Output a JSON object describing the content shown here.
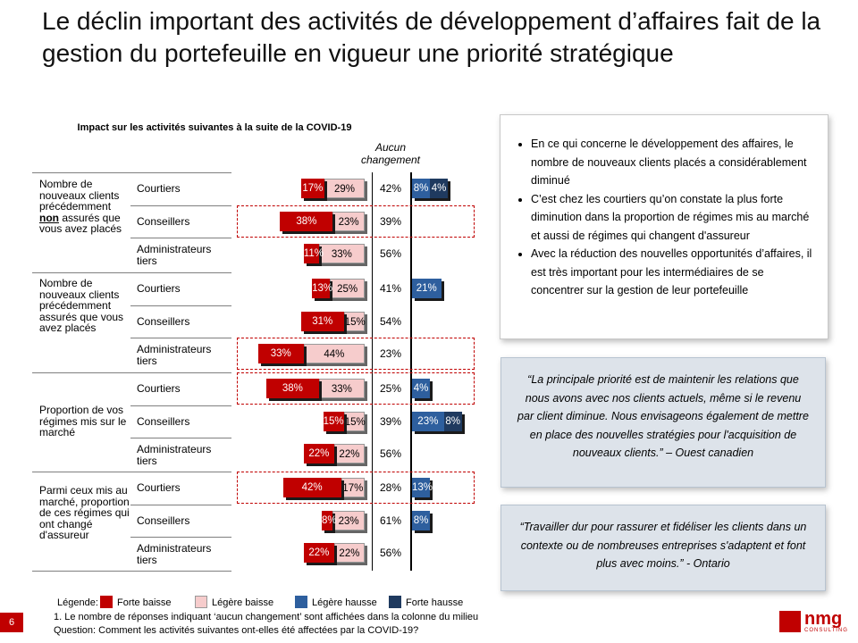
{
  "title": "Le déclin important des activités de développement  d’affaires fait de la gestion du portefeuille en vigueur une priorité stratégique",
  "chart_data": {
    "type": "bar",
    "title": "Impact sur les activités suivantes à la suite de la COVID-19",
    "center_column_label": "Aucun changement",
    "series": [
      {
        "name": "Forte baisse",
        "color": "#c00000"
      },
      {
        "name": "Légère baisse",
        "color": "#f6cccc"
      },
      {
        "name": "Aucun changement"
      },
      {
        "name": "Légère hausse",
        "color": "#2e5f9e"
      },
      {
        "name": "Forte hausse",
        "color": "#1f3a5f"
      }
    ],
    "categories": [
      "Nombre de nouveaux clients précédemment non assurés que vous avez placés",
      "Nombre de nouveaux clients précédemment assurés que vous avez placés",
      "Proportion de vos régimes mis sur le marché",
      "Parmi ceux mis au marché, proportion de ces régimes qui ont changé d'assureur"
    ],
    "groups": [
      "Courtiers",
      "Conseillers",
      "Administrateurs tiers"
    ],
    "rows": [
      {
        "category": 0,
        "group": "Courtiers",
        "forte_baisse": 17,
        "legere_baisse": 29,
        "aucun": 42,
        "legere_hausse": 8,
        "forte_hausse": 4,
        "highlight": false
      },
      {
        "category": 0,
        "group": "Conseillers",
        "forte_baisse": 38,
        "legere_baisse": 23,
        "aucun": 39,
        "legere_hausse": 0,
        "forte_hausse": 0,
        "highlight": true
      },
      {
        "category": 0,
        "group": "Administrateurs tiers",
        "forte_baisse": 11,
        "legere_baisse": 33,
        "aucun": 56,
        "legere_hausse": 0,
        "forte_hausse": 0,
        "highlight": false
      },
      {
        "category": 1,
        "group": "Courtiers",
        "forte_baisse": 13,
        "legere_baisse": 25,
        "aucun": 41,
        "legere_hausse": 21,
        "forte_hausse": 0,
        "highlight": false
      },
      {
        "category": 1,
        "group": "Conseillers",
        "forte_baisse": 31,
        "legere_baisse": 15,
        "aucun": 54,
        "legere_hausse": 0,
        "forte_hausse": 0,
        "highlight": false
      },
      {
        "category": 1,
        "group": "Administrateurs tiers",
        "forte_baisse": 33,
        "legere_baisse": 44,
        "aucun": 23,
        "legere_hausse": 0,
        "forte_hausse": 0,
        "highlight": true
      },
      {
        "category": 2,
        "group": "Courtiers",
        "forte_baisse": 38,
        "legere_baisse": 33,
        "aucun": 25,
        "legere_hausse": 4,
        "forte_hausse": 0,
        "highlight": true
      },
      {
        "category": 2,
        "group": "Conseillers",
        "forte_baisse": 15,
        "legere_baisse": 15,
        "aucun": 39,
        "legere_hausse": 23,
        "forte_hausse": 8,
        "highlight": false
      },
      {
        "category": 2,
        "group": "Administrateurs tiers",
        "forte_baisse": 22,
        "legere_baisse": 22,
        "aucun": 56,
        "legere_hausse": 0,
        "forte_hausse": 0,
        "highlight": false
      },
      {
        "category": 3,
        "group": "Courtiers",
        "forte_baisse": 42,
        "legere_baisse": 17,
        "aucun": 28,
        "legere_hausse": 13,
        "forte_hausse": 0,
        "highlight": true
      },
      {
        "category": 3,
        "group": "Conseillers",
        "forte_baisse": 8,
        "legere_baisse": 23,
        "aucun": 61,
        "legere_hausse": 8,
        "forte_hausse": 0,
        "highlight": false
      },
      {
        "category": 3,
        "group": "Administrateurs tiers",
        "forte_baisse": 22,
        "legere_baisse": 22,
        "aucun": 56,
        "legere_hausse": 0,
        "forte_hausse": 0,
        "highlight": false
      }
    ]
  },
  "bullets": [
    "En ce qui concerne le développement des affaires, le nombre de nouveaux clients placés a considérablement diminué",
    "C’est chez les courtiers qu’on constate la plus forte diminution dans la proportion de régimes mis au marché et aussi de régimes qui changent d'assureur",
    "Avec la réduction des nouvelles opportunités d’affaires, il est très important pour les intermédiaires de se concentrer sur la gestion de leur portefeuille"
  ],
  "quote1": "“La principale priorité est de maintenir les relations que nous avons avec nos clients actuels, même si le revenu par client diminue. Nous envisageons également de mettre en place des nouvelles stratégies pour l'acquisition de nouveaux clients.” – Ouest canadien",
  "quote2": "“Travailler dur pour rassurer et fidéliser les clients dans un contexte ou de nombreuses entreprises s'adaptent et font plus avec moins.” - Ontario",
  "legend_title": "Légende:",
  "footnote1": "1. Le nombre de réponses indiquant ‘aucun changement’ sont affichées dans la colonne du milieu",
  "footnote2": "Question: Comment les activités suivantes ont-elles été affectées par la COVID-19?",
  "page_number": "6",
  "logo_text": "nmg",
  "logo_sub": "CONSULTING"
}
